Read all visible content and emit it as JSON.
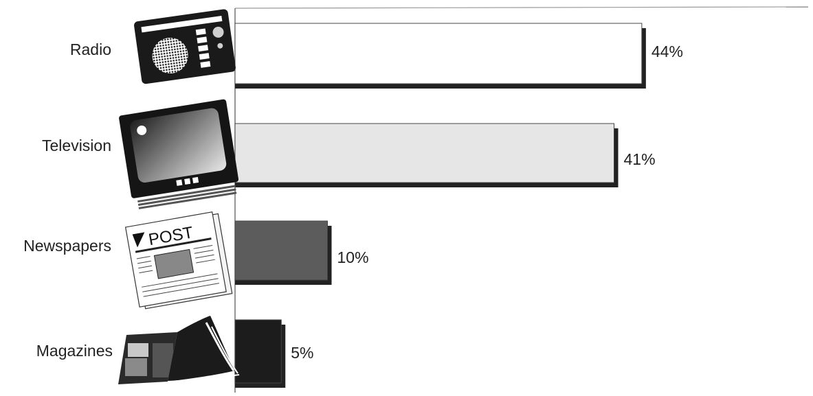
{
  "chart_data": {
    "type": "bar",
    "orientation": "horizontal",
    "title": "",
    "xlabel": "",
    "ylabel": "",
    "categories": [
      "Radio",
      "Television",
      "Newspapers",
      "Magazines"
    ],
    "values": [
      44,
      41,
      10,
      5
    ],
    "value_labels": [
      "44%",
      "41%",
      "10%",
      "5%"
    ],
    "unit": "%",
    "xlim": [
      0,
      62
    ],
    "grid": false,
    "legend": "none",
    "post_label": "POST",
    "icons": [
      "radio-icon",
      "television-icon",
      "newspaper-icon",
      "magazine-icon"
    ],
    "bar_fills": [
      "#ffffff",
      "#e6e6e6",
      "#5c5c5c",
      "#1c1c1c"
    ],
    "shadow_color": "#222222"
  }
}
